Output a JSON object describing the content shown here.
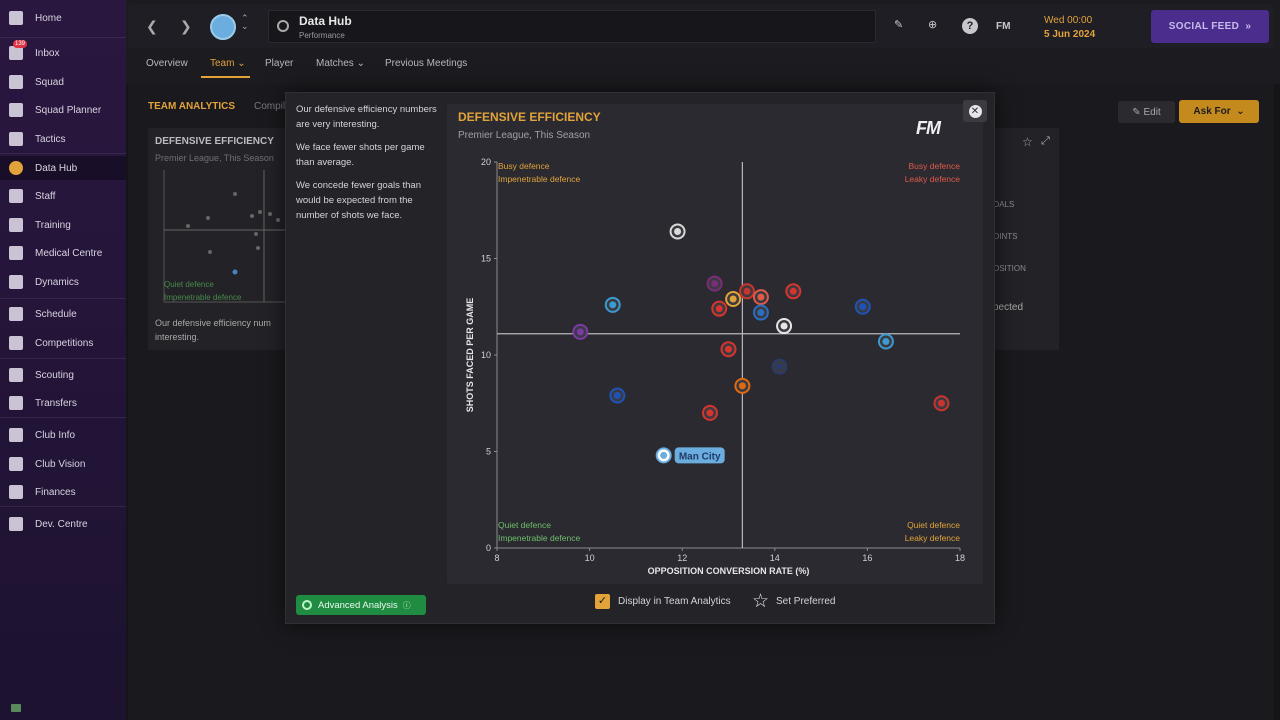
{
  "sidebar": {
    "items": [
      {
        "label": "Home",
        "icon": "home-icon"
      },
      {
        "label": "Inbox",
        "icon": "inbox-icon",
        "badge": "139"
      },
      {
        "label": "Squad",
        "icon": "shirt-icon"
      },
      {
        "label": "Squad Planner",
        "icon": "clipboard-icon"
      },
      {
        "label": "Tactics",
        "icon": "tactics-board-icon"
      },
      {
        "label": "Data Hub",
        "icon": "data-hub-icon"
      },
      {
        "label": "Staff",
        "icon": "staff-icon"
      },
      {
        "label": "Training",
        "icon": "training-icon"
      },
      {
        "label": "Medical Centre",
        "icon": "medical-icon"
      },
      {
        "label": "Dynamics",
        "icon": "dynamics-icon"
      },
      {
        "label": "Schedule",
        "icon": "calendar-icon"
      },
      {
        "label": "Competitions",
        "icon": "trophy-icon"
      },
      {
        "label": "Scouting",
        "icon": "scouting-icon"
      },
      {
        "label": "Transfers",
        "icon": "transfers-icon"
      },
      {
        "label": "Club Info",
        "icon": "shield-icon"
      },
      {
        "label": "Club Vision",
        "icon": "briefcase-icon"
      },
      {
        "label": "Finances",
        "icon": "finances-icon"
      },
      {
        "label": "Dev. Centre",
        "icon": "dev-centre-icon"
      }
    ]
  },
  "header": {
    "title": "Data Hub",
    "subtitle": "Performance",
    "date_line1": "Wed 00:00",
    "date_line2": "5 Jun 2024",
    "social_feed": "SOCIAL FEED",
    "tools": [
      "pencil-icon",
      "globe-icon",
      "help-icon",
      "fm-icon"
    ]
  },
  "tabs": [
    {
      "label": "Overview"
    },
    {
      "label": "Team ⌄"
    },
    {
      "label": "Player"
    },
    {
      "label": "Matches ⌄"
    },
    {
      "label": "Previous Meetings"
    }
  ],
  "background": {
    "section_label": "TEAM ANALYTICS",
    "section_sub": "Compil",
    "card_title": "DEFENSIVE EFFICIENCY",
    "card_sub": "Premier League, This Season",
    "card_q1": "Quiet defence",
    "card_q2": "Impenetrable defence",
    "card_text_1": "Our defensive efficiency num",
    "card_text_2": "interesting.",
    "right_texts": [
      "OALS",
      "OINTS",
      "OSITION",
      "pected"
    ],
    "edit": "Edit",
    "ask_for": "Ask For"
  },
  "modal": {
    "insights": [
      "Our defensive efficiency numbers are very interesting.",
      "We face fewer shots per game than average.",
      "We concede fewer goals than would be expected from the number of shots we face."
    ],
    "advanced_analysis": "Advanced Analysis",
    "chart_title": "DEFENSIVE EFFICIENCY",
    "chart_subtitle": "Premier League, This Season",
    "logo": "FM",
    "display_label": "Display in Team Analytics",
    "set_preferred": "Set Preferred"
  },
  "chart_data": {
    "type": "scatter",
    "xlabel": "OPPOSITION CONVERSION RATE (%)",
    "ylabel": "SHOTS FACED PER GAME",
    "xlim": [
      8,
      18
    ],
    "ylim": [
      0,
      20
    ],
    "xticks": [
      8,
      10,
      12,
      14,
      16,
      18
    ],
    "yticks": [
      0,
      5,
      10,
      15,
      20
    ],
    "avg_x": 13.3,
    "avg_y": 11.1,
    "quadrant_labels": {
      "top_left": [
        "Busy defence",
        "Impenetrable defence"
      ],
      "top_right": [
        "Busy defence",
        "Leaky defence"
      ],
      "bottom_left": [
        "Quiet defence",
        "Impenetrable defence"
      ],
      "bottom_right": [
        "Quiet defence",
        "Leaky defence"
      ]
    },
    "quadrant_colors": {
      "top_left": "#e2a33a",
      "top_right": "#e05a4a",
      "bottom_left": "#6fbf6a",
      "bottom_right": "#e2a33a"
    },
    "highlight_label": "Man City",
    "points": [
      {
        "x": 11.6,
        "y": 4.8,
        "color": "#6caddf",
        "highlight": true
      },
      {
        "x": 11.9,
        "y": 16.4,
        "color": "#d9d9d9"
      },
      {
        "x": 9.8,
        "y": 11.2,
        "color": "#7b3aa8"
      },
      {
        "x": 10.5,
        "y": 12.6,
        "color": "#3a9bd1"
      },
      {
        "x": 10.6,
        "y": 7.9,
        "color": "#1e54b7"
      },
      {
        "x": 12.7,
        "y": 13.7,
        "color": "#7b2d7a"
      },
      {
        "x": 12.8,
        "y": 12.4,
        "color": "#d8342e"
      },
      {
        "x": 13.1,
        "y": 12.9,
        "color": "#e2a33a"
      },
      {
        "x": 13.0,
        "y": 10.3,
        "color": "#d8342e"
      },
      {
        "x": 13.3,
        "y": 8.4,
        "color": "#e06a12"
      },
      {
        "x": 12.6,
        "y": 7.0,
        "color": "#d8342e"
      },
      {
        "x": 13.4,
        "y": 13.3,
        "color": "#c8342e"
      },
      {
        "x": 13.7,
        "y": 13.0,
        "color": "#e05a4a"
      },
      {
        "x": 13.7,
        "y": 12.2,
        "color": "#2d6dbf"
      },
      {
        "x": 14.4,
        "y": 13.3,
        "color": "#d8342e"
      },
      {
        "x": 14.2,
        "y": 11.5,
        "color": "#e6e6e6"
      },
      {
        "x": 14.1,
        "y": 9.4,
        "color": "#2a3a6a"
      },
      {
        "x": 15.9,
        "y": 12.5,
        "color": "#1e54b7"
      },
      {
        "x": 16.4,
        "y": 10.7,
        "color": "#3a9bd1"
      },
      {
        "x": 17.6,
        "y": 7.5,
        "color": "#c8342e"
      }
    ]
  }
}
